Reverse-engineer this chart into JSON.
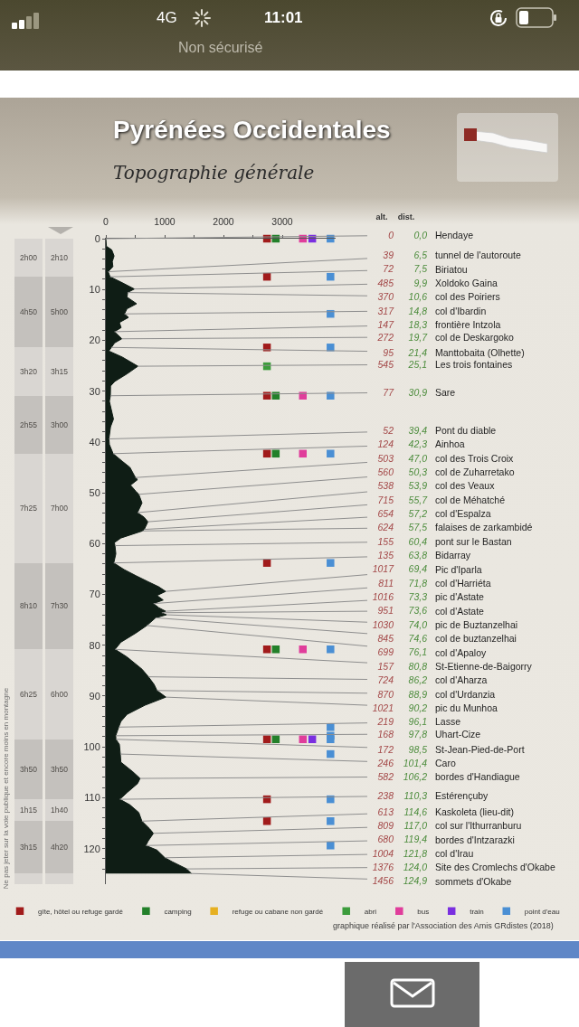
{
  "chart_data": [
    {
      "type": "area",
      "title": "Pyrénées Occidentales",
      "subtitle": "Topographie générale",
      "orientation": "horizontal",
      "xlim": [
        0,
        3900
      ],
      "xticks": [
        0,
        {
          "value": 500,
          "label": null
        },
        1000,
        {
          "value": 1500,
          "label": null
        },
        2000,
        {
          "value": 2500,
          "label": null
        },
        3000
      ],
      "ylim": [
        127,
        0
      ],
      "yticks": [
        0,
        {
          "value": 2,
          "label": null
        },
        {
          "value": 4,
          "label": null
        },
        {
          "value": 6,
          "label": null
        },
        {
          "value": 8,
          "label": null
        },
        10,
        {
          "value": 12,
          "label": null
        },
        {
          "value": 14,
          "label": null
        },
        {
          "value": 16,
          "label": null
        },
        {
          "value": 18,
          "label": null
        },
        20,
        {
          "value": 22,
          "label": null
        },
        {
          "value": 24,
          "label": null
        },
        {
          "value": 26,
          "label": null
        },
        {
          "value": 28,
          "label": null
        },
        30,
        {
          "value": 32,
          "label": null
        },
        {
          "value": 34,
          "label": null
        },
        {
          "value": 36,
          "label": null
        },
        {
          "value": 38,
          "label": null
        },
        40,
        {
          "value": 42,
          "label": null
        },
        {
          "value": 44,
          "label": null
        },
        {
          "value": 46,
          "label": null
        },
        {
          "value": 48,
          "label": null
        },
        50,
        {
          "value": 52,
          "label": null
        },
        {
          "value": 54,
          "label": null
        },
        {
          "value": 56,
          "label": null
        },
        {
          "value": 58,
          "label": null
        },
        60,
        {
          "value": 62,
          "label": null
        },
        {
          "value": 64,
          "label": null
        },
        {
          "value": 66,
          "label": null
        },
        {
          "value": 68,
          "label": null
        },
        70,
        {
          "value": 72,
          "label": null
        },
        {
          "value": 74,
          "label": null
        },
        {
          "value": 76,
          "label": null
        },
        {
          "value": 78,
          "label": null
        },
        80,
        {
          "value": 82,
          "label": null
        },
        {
          "value": 84,
          "label": null
        },
        {
          "value": 86,
          "label": null
        },
        {
          "value": 88,
          "label": null
        },
        90,
        {
          "value": 92,
          "label": null
        },
        {
          "value": 94,
          "label": null
        },
        {
          "value": 96,
          "label": null
        },
        {
          "value": 98,
          "label": null
        },
        100,
        {
          "value": 102,
          "label": null
        },
        {
          "value": 104,
          "label": null
        },
        {
          "value": 106,
          "label": null
        },
        {
          "value": 108,
          "label": null
        },
        110,
        {
          "value": 112,
          "label": null
        },
        {
          "value": 114,
          "label": null
        },
        {
          "value": 116,
          "label": null
        },
        {
          "value": 118,
          "label": null
        },
        120,
        {
          "value": 122,
          "label": null
        },
        {
          "value": 124,
          "label": null
        }
      ],
      "legend": "bottom",
      "series": [
        {
          "type": "area",
          "color": "#0f1d15",
          "x": [
            0,
            1.5,
            2.2,
            3.4,
            4.5,
            5.5,
            6.5,
            7.5,
            8.5,
            9.9,
            10.6,
            11.5,
            12.8,
            13.8,
            14.8,
            15.5,
            16.5,
            17.5,
            18.3,
            19.7,
            20.5,
            21.4,
            22.1,
            23.3,
            25.1,
            26.6,
            28.1,
            29,
            30.9,
            32,
            33.5,
            35.5,
            37,
            39.4,
            40.5,
            42.3,
            43.8,
            45,
            47,
            47.4,
            48.5,
            49.7,
            50.3,
            52,
            53.9,
            54.8,
            55.7,
            57.2,
            57.5,
            58.9,
            59.8,
            60.4,
            62,
            63.8,
            65.1,
            66.3,
            67.5,
            68.5,
            69.4,
            70.2,
            71.1,
            71.8,
            72.6,
            73.3,
            73.6,
            74,
            74.6,
            76.1,
            77.6,
            79.4,
            80.8,
            82.3,
            84.7,
            86.2,
            87.7,
            88.9,
            90.2,
            91.8,
            93.6,
            95,
            96.1,
            97.8,
            98.5,
            99.5,
            101.4,
            103,
            104.9,
            106.2,
            107.2,
            109,
            110.3,
            111.4,
            112.9,
            114.6,
            116.1,
            117,
            118.5,
            119.4,
            120.3,
            121.8,
            122.6,
            124,
            124.9
          ],
          "values": [
            0,
            10,
            100,
            140,
            110,
            120,
            39,
            72,
            250,
            485,
            370,
            360,
            523,
            360,
            317,
            385,
            230,
            260,
            147,
            272,
            150,
            95,
            50,
            280,
            545,
            360,
            150,
            80,
            77,
            60,
            90,
            130,
            80,
            52,
            60,
            124,
            280,
            410,
            503,
            540,
            420,
            510,
            560,
            615,
            538,
            650,
            715,
            654,
            624,
            255,
            145,
            155,
            170,
            135,
            310,
            510,
            720,
            900,
            1017,
            870,
            975,
            811,
            900,
            1016,
            951,
            1030,
            845,
            699,
            510,
            255,
            157,
            360,
            615,
            724,
            820,
            870,
            1021,
            665,
            360,
            255,
            219,
            168,
            172,
            230,
            246,
            255,
            460,
            582,
            540,
            360,
            238,
            410,
            560,
            613,
            745,
            809,
            720,
            680,
            870,
            1004,
            1130,
            1376,
            1456
          ]
        },
        {
          "type": "scatter",
          "name": "gîte, hôtel ou refuge gardé",
          "color": "#a11b1b",
          "marker": "square",
          "x": [
            0,
            7.5,
            21.4,
            30.9,
            42.3,
            63.8,
            80.8,
            98.5,
            110.3,
            114.6
          ],
          "values": [
            2740,
            2740,
            2740,
            2740,
            2740,
            2740,
            2740,
            2740,
            2740,
            2740
          ]
        },
        {
          "type": "scatter",
          "name": "camping",
          "color": "#23802a",
          "marker": "square",
          "x": [
            0,
            30.9,
            42.3,
            80.8,
            98.5
          ],
          "values": [
            2890,
            2890,
            2890,
            2890,
            2890
          ]
        },
        {
          "type": "scatter",
          "name": "refuge ou cabane non gardé",
          "color": "#e6b021",
          "marker": "square"
        },
        {
          "type": "scatter",
          "name": "abri",
          "color": "#3c9c3c",
          "marker": "square",
          "x": [
            25.1
          ],
          "values": [
            2740
          ]
        },
        {
          "type": "scatter",
          "name": "bus",
          "color": "#e03d9b",
          "marker": "square",
          "x": [
            0,
            30.9,
            42.3,
            80.8,
            98.5
          ],
          "values": [
            3350,
            3350,
            3350,
            3350,
            3350
          ]
        },
        {
          "type": "scatter",
          "name": "train",
          "color": "#7a2fe0",
          "marker": "square",
          "x": [
            0,
            98.5
          ],
          "values": [
            3510,
            3510
          ]
        },
        {
          "type": "scatter",
          "name": "point d'eau",
          "color": "#4a8fd4",
          "marker": "square",
          "x": [
            0,
            7.5,
            14.8,
            21.4,
            30.9,
            42.3,
            63.8,
            80.8,
            96.1,
            97.8,
            98.5,
            101.4,
            110.3,
            114.6,
            119.4
          ],
          "values": [
            3820,
            3820,
            3820,
            3820,
            3820,
            3820,
            3820,
            3820,
            3820,
            3820,
            3820,
            3820,
            3820,
            3820,
            3820
          ]
        }
      ],
      "annotations": [
        "4G",
        "11:01",
        "Non sécurisé",
        "Ne pas jeter sur la voie publique et encore moins en montagne",
        "graphique réalisé par l'Association des Amis GRdistes (2018)",
        {
          "text": "Hendaye",
          "x": 0,
          "y": 0.0
        },
        {
          "text": "tunnel de l'autoroute",
          "x": 39,
          "y": 6.5
        },
        {
          "text": "Biriatou",
          "x": 72,
          "y": 7.5
        },
        {
          "text": "Xoldoko Gaina",
          "x": 485,
          "y": 9.9
        },
        {
          "text": "col des Poiriers",
          "x": 370,
          "y": 10.6
        },
        {
          "text": "col d'Ibardin",
          "x": 317,
          "y": 14.8
        },
        {
          "text": "frontière Intzola",
          "x": 147,
          "y": 18.3
        },
        {
          "text": "col de Deskargoko",
          "x": 272,
          "y": 19.7
        },
        {
          "text": "Manttobaita (Olhette)",
          "x": 95,
          "y": 21.4
        },
        {
          "text": "Les trois fontaines",
          "x": 545,
          "y": 25.1
        },
        {
          "text": "Sare",
          "x": 77,
          "y": 30.9
        },
        {
          "text": "Pont du diable",
          "x": 52,
          "y": 39.4
        },
        {
          "text": "Ainhoa",
          "x": 124,
          "y": 42.3
        },
        {
          "text": "col des Trois Croix",
          "x": 503,
          "y": 47.0
        },
        {
          "text": "col de Zuharretako",
          "x": 560,
          "y": 50.3
        },
        {
          "text": "col des Veaux",
          "x": 538,
          "y": 53.9
        },
        {
          "text": "col de Méhatché",
          "x": 715,
          "y": 55.7
        },
        {
          "text": "col d'Espalza",
          "x": 654,
          "y": 57.2
        },
        {
          "text": "falaises de zarkambidé",
          "x": 624,
          "y": 57.5
        },
        {
          "text": "pont sur le Bastan",
          "x": 155,
          "y": 60.4
        },
        {
          "text": "Bidarray",
          "x": 135,
          "y": 63.8
        },
        {
          "text": "Pic d'Iparla",
          "x": 1017,
          "y": 69.4
        },
        {
          "text": "col d'Harriéta",
          "x": 811,
          "y": 71.8
        },
        {
          "text": "pic d'Astate",
          "x": 1016,
          "y": 73.3
        },
        {
          "text": "col d'Astate",
          "x": 951,
          "y": 73.6
        },
        {
          "text": "pic de Buztanzelhai",
          "x": 1030,
          "y": 74.0
        },
        {
          "text": "col de buztanzelhai",
          "x": 845,
          "y": 74.6
        },
        {
          "text": "col d'Apaloy",
          "x": 699,
          "y": 76.1
        },
        {
          "text": "St-Etienne-de-Baigorry",
          "x": 157,
          "y": 80.8
        },
        {
          "text": "col d'Aharza",
          "x": 724,
          "y": 86.2
        },
        {
          "text": "col d'Urdanzia",
          "x": 870,
          "y": 88.9
        },
        {
          "text": "pic du Munhoa",
          "x": 1021,
          "y": 90.2
        },
        {
          "text": "Lasse",
          "x": 219,
          "y": 96.1
        },
        {
          "text": "Uhart-Cize",
          "x": 168,
          "y": 97.8
        },
        {
          "text": "St-Jean-Pied-de-Port",
          "x": 172,
          "y": 98.5
        },
        {
          "text": "Caro",
          "x": 246,
          "y": 101.4
        },
        {
          "text": "bordes d'Handiague",
          "x": 582,
          "y": 106.2
        },
        {
          "text": "Estérençuby",
          "x": 238,
          "y": 110.3
        },
        {
          "text": "Kaskoleta (lieu-dit)",
          "x": 613,
          "y": 114.6
        },
        {
          "text": "col sur l'Ithurranburu",
          "x": 809,
          "y": 117.0
        },
        {
          "text": "bordes d'Intzarazki",
          "x": 680,
          "y": 119.4
        },
        {
          "text": "col d'Irau",
          "x": 1004,
          "y": 121.8
        },
        {
          "text": "Site des Cromlechs d'Okabe",
          "x": 1376,
          "y": 124.0
        },
        {
          "text": "sommets d'Okabe",
          "x": 1456,
          "y": 124.9
        }
      ]
    },
    {
      "type": "bar",
      "stacked": true,
      "categories": [
        null,
        null
      ],
      "ylim": [
        127,
        0
      ],
      "tick_labels": false,
      "series": [
        {
          "color": "#d9d6d2",
          "values": [
            7.5,
            7.5
          ]
        },
        {
          "color": "#c4c1bd",
          "values": [
            13.9,
            13.9
          ]
        },
        {
          "color": "#d9d6d2",
          "values": [
            9.5,
            9.5
          ]
        },
        {
          "color": "#c4c1bd",
          "values": [
            11.4,
            11.4
          ]
        },
        {
          "color": "#d9d6d2",
          "values": [
            21.5,
            21.5
          ]
        },
        {
          "color": "#c4c1bd",
          "values": [
            17.0,
            17.0
          ]
        },
        {
          "color": "#d9d6d2",
          "values": [
            17.7,
            17.7
          ]
        },
        {
          "color": "#c4c1bd",
          "values": [
            11.8,
            11.8
          ]
        },
        {
          "color": "#d9d6d2",
          "values": [
            4.3,
            4.3
          ]
        },
        {
          "color": "#c4c1bd",
          "values": [
            10.3,
            10.3
          ]
        },
        {
          "color": "#d9d6d2",
          "values": [
            2.1,
            2.1
          ]
        }
      ],
      "annotations": [
        "2h00",
        "2h10",
        "4h50",
        "5h00",
        "3h20",
        "3h15",
        "2h55",
        "3h00",
        "7h25",
        "7h00",
        "8h10",
        "7h30",
        "6h25",
        "6h00",
        "3h50",
        "3h50",
        "1h15",
        "1h40",
        "3h15",
        "4h20"
      ]
    },
    {
      "type": "other",
      "annotations": [
        "alt.",
        "dist.",
        "0",
        "0,0",
        "39",
        "6,5",
        "72",
        "7,5",
        "485",
        "9,9",
        "370",
        "10,6",
        "317",
        "14,8",
        "147",
        "18,3",
        "272",
        "19,7",
        "95",
        "21,4",
        "545",
        "25,1",
        "77",
        "30,9",
        "52",
        "39,4",
        "124",
        "42,3",
        "503",
        "47,0",
        "560",
        "50,3",
        "538",
        "53,9",
        "715",
        "55,7",
        "654",
        "57,2",
        "624",
        "57,5",
        "155",
        "60,4",
        "135",
        "63,8",
        "1017",
        "69,4",
        "811",
        "71,8",
        "1016",
        "73,3",
        "951",
        "73,6",
        "1030",
        "74,0",
        "845",
        "74,6",
        "699",
        "76,1",
        "157",
        "80,8",
        "724",
        "86,2",
        "870",
        "88,9",
        "1021",
        "90,2",
        "219",
        "96,1",
        "168",
        "97,8",
        "172",
        "98,5",
        "246",
        "101,4",
        "582",
        "106,2",
        "238",
        "110,3",
        "613",
        "114,6",
        "809",
        "117,0",
        "680",
        "119,4",
        "1004",
        "121,8",
        "1376",
        "124,0",
        "1456",
        "124,9"
      ]
    }
  ]
}
